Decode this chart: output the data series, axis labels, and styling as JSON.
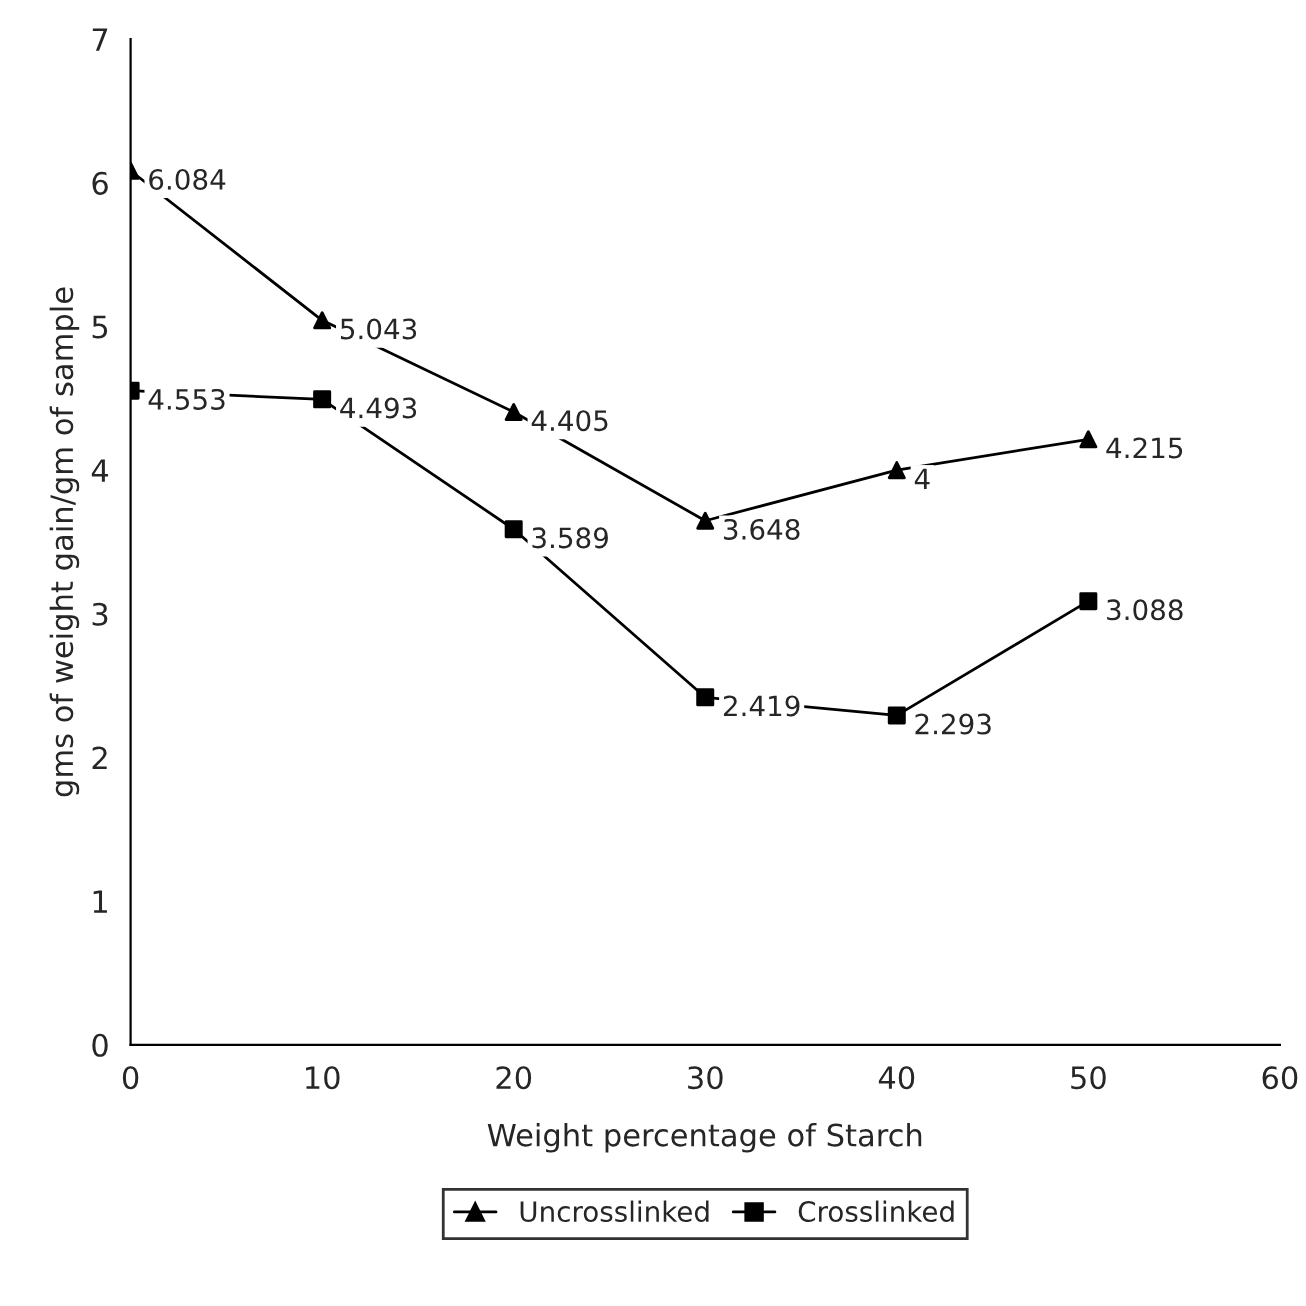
{
  "chart_data": {
    "type": "line",
    "xlabel": "Weight percentage of Starch",
    "ylabel": "gms of weight gain/gm of sample",
    "x": [
      0,
      10,
      20,
      30,
      40,
      50
    ],
    "series": [
      {
        "name": "Uncrosslinked",
        "color": "#000000",
        "marker": "triangle",
        "values": [
          6.084,
          5.043,
          4.405,
          3.648,
          4,
          4.215
        ]
      },
      {
        "name": "Crosslinked",
        "color": "#000000",
        "marker": "square",
        "values": [
          4.553,
          4.493,
          3.589,
          2.419,
          2.293,
          3.088
        ]
      }
    ],
    "xlim": [
      0,
      60
    ],
    "xticks": [
      0,
      10,
      20,
      30,
      40,
      50,
      60
    ],
    "ylim": [
      0,
      7
    ],
    "yticks": [
      0,
      1,
      2,
      3,
      4,
      5,
      6,
      7
    ],
    "data_labels": true,
    "legend": "bottom",
    "grid": false,
    "line_style": "solid"
  }
}
